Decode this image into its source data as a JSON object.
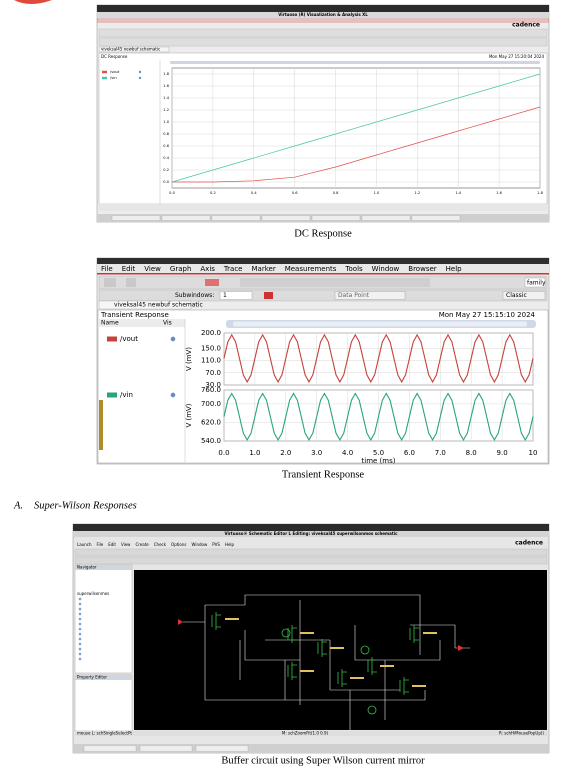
{
  "document": {
    "figure_1": {
      "window_title": "Virtuoso (R) Visualization & Analysis XL",
      "brand": "cadence",
      "tab": "viveksal45 newbuf schematic",
      "caption": "DC Response"
    },
    "figure_2": {
      "menu": [
        "File",
        "Edit",
        "View",
        "Graph",
        "Axis",
        "Trace",
        "Marker",
        "Measurements",
        "Tools",
        "Window",
        "Browser",
        "Help"
      ],
      "subwindows": "Subwindows:",
      "subwindow_value": "1",
      "data_point": "Data Point",
      "style": "Classic",
      "family": "family",
      "tab": "viveksal45 newbuf schematic",
      "legend_name": "Name",
      "legend_vis": "Vis",
      "caption": "Transient Response"
    },
    "section": {
      "number": "A.",
      "title": "Super-Wilson Responses"
    },
    "figure_3": {
      "window_title": "Virtuoso® Schematic Editor L Editing: viveksal45 superwilsonmos schematic",
      "menu": [
        "Launch",
        "File",
        "Edit",
        "View",
        "Create",
        "Check",
        "Options",
        "Window",
        "PVS",
        "Help"
      ],
      "brand": "cadence",
      "navigator": "Navigator",
      "cell": "superwilsonmos",
      "property_editor": "Property Editor",
      "status": [
        "mouse L: schSingleSelectPt",
        "M: schZoomFit(1.0 0.9)",
        "R: schHiMousePopUp()"
      ],
      "caption": "Buffer circuit using Super Wilson current mirror"
    }
  },
  "chart_data": [
    {
      "type": "line",
      "title": "DC Response",
      "timestamp": "Mon May 27 15:20:04 2024",
      "x": [
        0,
        0.2,
        0.4,
        0.6,
        0.8,
        1.0,
        1.2,
        1.4,
        1.6,
        1.8
      ],
      "series": [
        {
          "name": "/vout",
          "color": "#e0504a",
          "values": [
            0,
            0,
            0.02,
            0.08,
            0.25,
            0.45,
            0.65,
            0.85,
            1.05,
            1.25
          ]
        },
        {
          "name": "/vin",
          "color": "#46c6a6",
          "values": [
            0,
            0.2,
            0.4,
            0.6,
            0.8,
            1.0,
            1.2,
            1.4,
            1.6,
            1.8
          ]
        }
      ],
      "xlim": [
        0,
        1.8
      ],
      "xticks": [
        {
          "value": 0,
          "label": "0.0"
        },
        0.2,
        0.4,
        0.6,
        0.8,
        {
          "value": 1,
          "label": "1.0"
        },
        1.2,
        1.4,
        1.6,
        1.8
      ],
      "ylim": [
        -0.1,
        1.9
      ],
      "yticks": [
        {
          "value": 0,
          "label": "0.0"
        },
        0.2,
        0.4,
        0.6,
        0.8,
        {
          "value": 1,
          "label": "1.0"
        },
        1.2,
        1.4,
        1.6,
        1.8
      ],
      "grid": true
    },
    {
      "type": "line",
      "title": "Transient Response",
      "timestamp": "Mon May 27 15:15:10 2024",
      "xlabel": "time (ms)",
      "ylabel": "V (mV)",
      "x": [
        0,
        0.125,
        0.25,
        0.375,
        0.5,
        0.625,
        0.75,
        0.875,
        1,
        1.125,
        1.25,
        1.375,
        1.5,
        1.625,
        1.75,
        1.875,
        2,
        2.125,
        2.25,
        2.375,
        2.5,
        2.625,
        2.75,
        2.875,
        3,
        3.125,
        3.25,
        3.375,
        3.5,
        3.625,
        3.75,
        3.875,
        4,
        4.125,
        4.25,
        4.375,
        4.5,
        4.625,
        4.75,
        4.875,
        5,
        5.125,
        5.25,
        5.375,
        5.5,
        5.625,
        5.75,
        5.875,
        6,
        6.125,
        6.25,
        6.375,
        6.5,
        6.625,
        6.75,
        6.875,
        7,
        7.125,
        7.25,
        7.375,
        7.5,
        7.625,
        7.75,
        7.875,
        8,
        8.125,
        8.25,
        8.375,
        8.5,
        8.625,
        8.75,
        8.875,
        9,
        9.125,
        9.25,
        9.375,
        9.5,
        9.625,
        9.75,
        9.875,
        10
      ],
      "series": [
        {
          "name": "/vout",
          "color": "#c8413c",
          "values": [
            117,
            171,
            194,
            171,
            117,
            63,
            40,
            63,
            117,
            171,
            194,
            171,
            117,
            63,
            40,
            63,
            117,
            171,
            194,
            171,
            117,
            63,
            40,
            63,
            117,
            171,
            194,
            171,
            117,
            63,
            40,
            63,
            117,
            171,
            194,
            171,
            117,
            63,
            40,
            63,
            117,
            171,
            194,
            171,
            117,
            63,
            40,
            63,
            117,
            171,
            194,
            171,
            117,
            63,
            40,
            63,
            117,
            171,
            194,
            171,
            117,
            63,
            40,
            63,
            117,
            171,
            194,
            171,
            117,
            63,
            40,
            63,
            117,
            171,
            194,
            171,
            117,
            63,
            40,
            63,
            117
          ]
        },
        {
          "name": "/vin",
          "color": "#2aa57a",
          "axis": "y2",
          "values": [
            645,
            716,
            745,
            716,
            645,
            574,
            545,
            574,
            645,
            716,
            745,
            716,
            645,
            574,
            545,
            574,
            645,
            716,
            745,
            716,
            645,
            574,
            545,
            574,
            645,
            716,
            745,
            716,
            645,
            574,
            545,
            574,
            645,
            716,
            745,
            716,
            645,
            574,
            545,
            574,
            645,
            716,
            745,
            716,
            645,
            574,
            545,
            574,
            645,
            716,
            745,
            716,
            645,
            574,
            545,
            574,
            645,
            716,
            745,
            716,
            645,
            574,
            545,
            574,
            645,
            716,
            745,
            716,
            645,
            574,
            545,
            574,
            645,
            716,
            745,
            716,
            645,
            574,
            545,
            574,
            645
          ]
        }
      ],
      "xlim": [
        0,
        10
      ],
      "xticks": [
        {
          "value": 0,
          "label": "0.0"
        },
        {
          "value": 1,
          "label": "1.0"
        },
        {
          "value": 2,
          "label": "2.0"
        },
        {
          "value": 3,
          "label": "3.0"
        },
        {
          "value": 4,
          "label": "4.0"
        },
        {
          "value": 5,
          "label": "5.0"
        },
        {
          "value": 6,
          "label": "6.0"
        },
        {
          "value": 7,
          "label": "7.0"
        },
        {
          "value": 8,
          "label": "8.0"
        },
        {
          "value": 9,
          "label": "9.0"
        },
        {
          "value": 10,
          "label": "10"
        }
      ],
      "ylim": [
        30,
        200
      ],
      "yticks": [
        {
          "value": 30,
          "label": "30.0"
        },
        {
          "value": 70,
          "label": "70.0"
        },
        {
          "value": 110,
          "label": "110.0"
        },
        {
          "value": 150,
          "label": "150.0"
        },
        {
          "value": 200,
          "label": "200.0"
        }
      ],
      "y2lim": [
        540,
        760
      ],
      "y2ticks": [
        {
          "value": 540,
          "label": "540.0"
        },
        {
          "value": 620,
          "label": "620.0"
        },
        {
          "value": 700,
          "label": "700.0"
        },
        {
          "value": 760,
          "label": "760.0"
        }
      ],
      "grid": true
    }
  ]
}
